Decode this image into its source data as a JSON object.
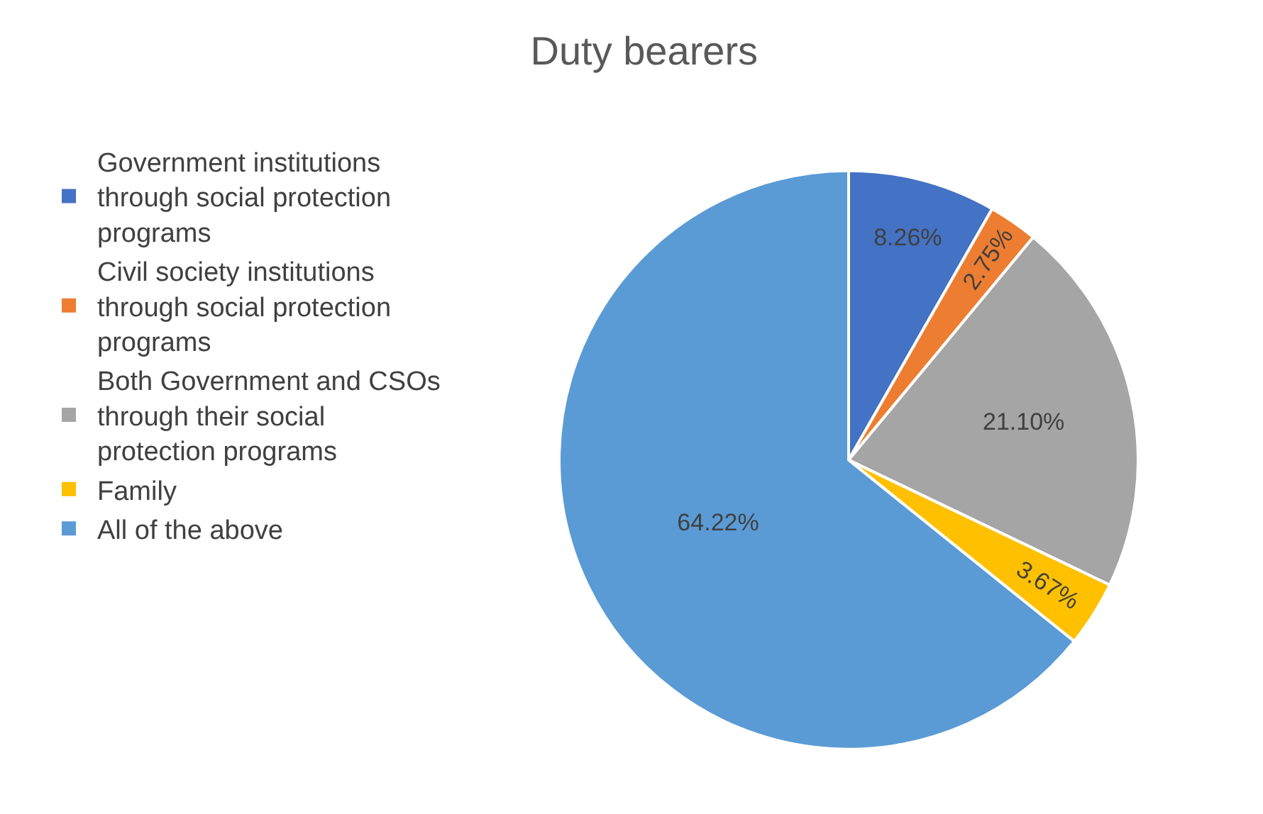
{
  "chart_data": {
    "type": "pie",
    "title": "Duty bearers",
    "categories": [
      "Government institutions through social protection programs",
      "Civil society institutions through social protection programs",
      "Both Government and CSOs through their social protection programs",
      "Family",
      "All of the above"
    ],
    "values": [
      8.26,
      2.75,
      21.1,
      3.67,
      64.22
    ],
    "value_labels": [
      "8.26%",
      "2.75%",
      "21.10%",
      "3.67%",
      "64.22%"
    ],
    "colors": [
      "#4472c4",
      "#ed7d31",
      "#a5a5a5",
      "#ffc000",
      "#5b9bd5"
    ],
    "legend": "left"
  }
}
